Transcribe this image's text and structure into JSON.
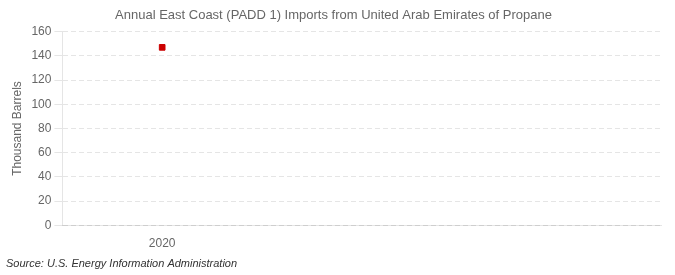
{
  "chart_data": {
    "type": "scatter",
    "title": "Annual East Coast (PADD 1) Imports from United Arab Emirates of Propane",
    "ylabel": "Thousand Barrels",
    "annotation": "Source: U.S. Energy Information Administration",
    "x": [
      2020
    ],
    "values": [
      147
    ],
    "color": "#cc0000",
    "marker": "square",
    "xlim": [
      2019.4,
      2023.0
    ],
    "xticks": [
      2020
    ],
    "ylim": [
      0,
      160
    ],
    "yticks": [
      0,
      20,
      40,
      60,
      80,
      100,
      120,
      140,
      160
    ],
    "grid": "y"
  }
}
